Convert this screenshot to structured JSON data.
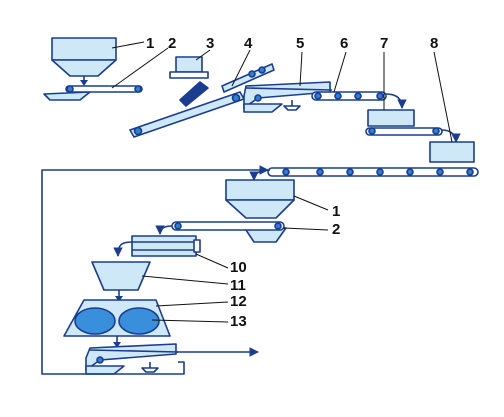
{
  "colors": {
    "fill": "#cfe8f8",
    "outline": "#1a3d8f",
    "roller": "#2f7fd0",
    "oval": "#3a8fdc",
    "arrow": "#1a3d8f",
    "label": "#111111"
  },
  "labels": {
    "top": [
      "1",
      "2",
      "3",
      "4",
      "5",
      "6",
      "7",
      "8"
    ],
    "bottom": [
      "1",
      "2",
      "10",
      "11",
      "12",
      "13"
    ]
  }
}
